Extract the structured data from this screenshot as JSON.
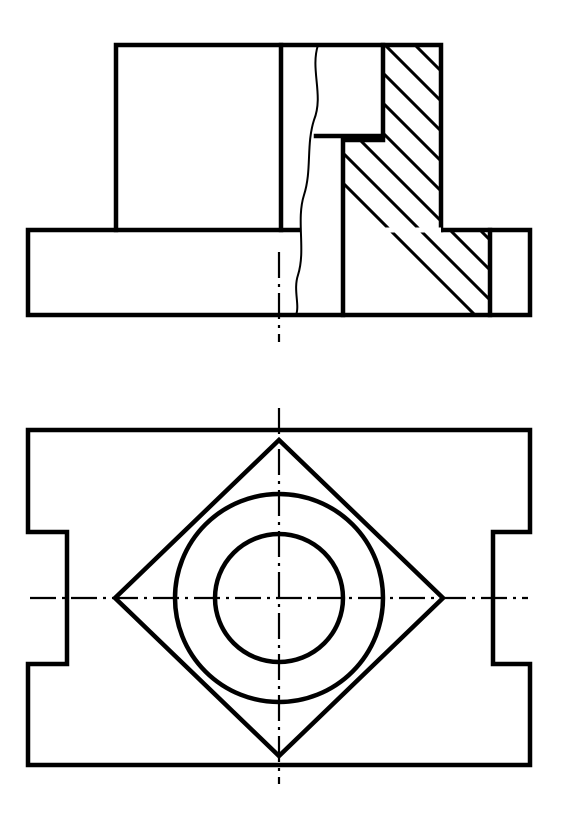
{
  "drawing": {
    "line_color": "#000000",
    "background_color": "#ffffff",
    "views": [
      "front-view-half-section",
      "top-view"
    ]
  }
}
